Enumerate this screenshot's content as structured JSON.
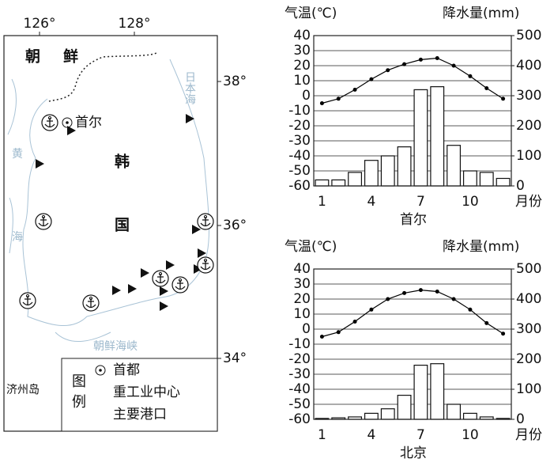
{
  "map": {
    "longitude_labels": [
      "126°",
      "128°"
    ],
    "latitude_labels": [
      "38°",
      "36°",
      "34°"
    ],
    "country_labels": [
      "朝",
      "鲜",
      "韩",
      "国"
    ],
    "sea_labels": [
      "黄",
      "海",
      "日本海",
      "朝鲜海峡"
    ],
    "capital": "首尔",
    "island": "济州岛",
    "legend": {
      "title": "图例",
      "items": [
        "首都",
        "重工业中心",
        "主要港口"
      ]
    }
  },
  "chart_data": [
    {
      "type": "climate",
      "name": "首尔",
      "ylabel": "气温(℃)",
      "y2label": "降水量(mm)",
      "xlabel": "月份",
      "categories": [
        "1",
        null,
        null,
        "4",
        null,
        null,
        "7",
        null,
        null,
        "10",
        null,
        null
      ],
      "ylim": [
        -60,
        40
      ],
      "yticks": [
        -60,
        -50,
        -40,
        -30,
        -20,
        -10,
        0,
        10,
        20,
        30,
        40
      ],
      "y2lim": [
        0,
        500
      ],
      "y2ticks": [
        0,
        100,
        200,
        300,
        400,
        500
      ],
      "grid": true,
      "series": [
        {
          "name": "气温",
          "kind": "line",
          "color": "#000000",
          "values": [
            -5,
            -2,
            4,
            11,
            17,
            21,
            24,
            25,
            20,
            13,
            5,
            -2
          ]
        },
        {
          "name": "降水量",
          "kind": "bar",
          "axis": "y2",
          "color": "#ffffff",
          "values": [
            20,
            20,
            45,
            85,
            100,
            130,
            320,
            330,
            135,
            50,
            45,
            25
          ]
        }
      ]
    },
    {
      "type": "climate",
      "name": "北京",
      "ylabel": "气温(℃)",
      "y2label": "降水量(mm)",
      "xlabel": "月份",
      "categories": [
        "1",
        null,
        null,
        "4",
        null,
        null,
        "7",
        null,
        null,
        "10",
        null,
        null
      ],
      "ylim": [
        -60,
        40
      ],
      "yticks": [
        -60,
        -50,
        -40,
        -30,
        -20,
        -10,
        0,
        10,
        20,
        30,
        40
      ],
      "y2lim": [
        0,
        500
      ],
      "y2ticks": [
        0,
        100,
        200,
        300,
        400,
        500
      ],
      "grid": true,
      "series": [
        {
          "name": "气温",
          "kind": "line",
          "color": "#000000",
          "values": [
            -5,
            -2,
            5,
            13,
            20,
            24,
            26,
            25,
            20,
            13,
            4,
            -3
          ]
        },
        {
          "name": "降水量",
          "kind": "bar",
          "axis": "y2",
          "color": "#ffffff",
          "values": [
            3,
            5,
            8,
            20,
            35,
            80,
            180,
            185,
            50,
            20,
            8,
            3
          ]
        }
      ]
    }
  ]
}
